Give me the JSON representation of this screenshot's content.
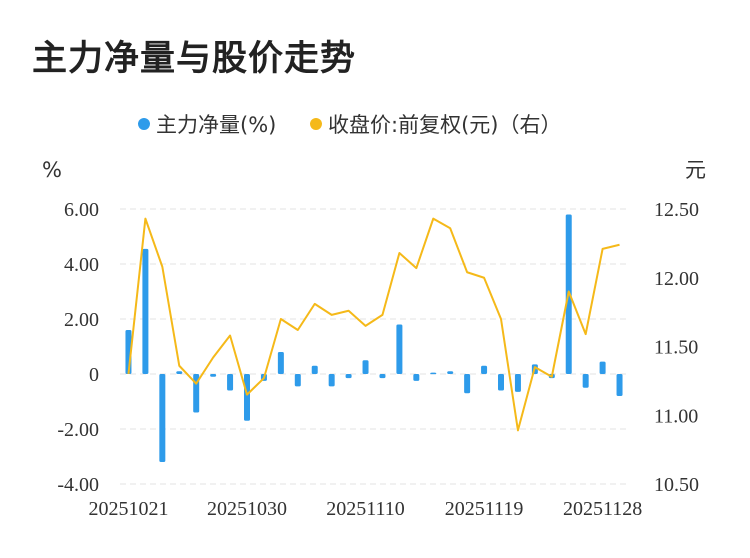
{
  "chart_title": "主力净量与股价走势",
  "chart_data": {
    "type": "bar+line",
    "title": "主力净量与股价走势",
    "left_unit": "%",
    "right_unit": "元",
    "legend": [
      {
        "label": "主力净量(%)",
        "color": "#2E9BEA"
      },
      {
        "label": "收盘价:前复权(元)（右）",
        "color": "#F5B919"
      }
    ],
    "x_tick_labels": [
      "20251021",
      "20251030",
      "20251110",
      "20251119",
      "20251128"
    ],
    "x_tick_indices": [
      0,
      7,
      14,
      21,
      28
    ],
    "left_axis": {
      "ylim": [
        -4,
        6
      ],
      "ticks": [
        "6.00",
        "4.00",
        "2.00",
        "0",
        "-2.00",
        "-4.00"
      ],
      "values": [
        6,
        4,
        2,
        0,
        -2,
        -4
      ]
    },
    "right_axis": {
      "ylim": [
        10.5,
        12.5
      ],
      "ticks": [
        "12.50",
        "12.00",
        "11.50",
        "11.00",
        "10.50"
      ],
      "values": [
        12.5,
        12.0,
        11.5,
        11.0,
        10.5
      ]
    },
    "series": [
      {
        "name": "主力净量(%)",
        "type": "bar",
        "axis": "left",
        "color": "#2E9BEA",
        "values": [
          1.6,
          4.55,
          -3.2,
          0.1,
          -1.4,
          -0.1,
          -0.6,
          -1.7,
          -0.25,
          0.8,
          -0.45,
          0.3,
          -0.45,
          -0.15,
          0.5,
          -0.15,
          1.8,
          -0.25,
          0.05,
          0.1,
          -0.7,
          0.3,
          -0.6,
          -0.65,
          0.35,
          -0.15,
          5.8,
          -0.5,
          0.45,
          -0.8
        ]
      },
      {
        "name": "收盘价:前复权(元)（右）",
        "type": "line",
        "axis": "right",
        "color": "#F5B919",
        "values": [
          11.3,
          12.43,
          12.08,
          11.36,
          11.23,
          11.42,
          11.58,
          11.15,
          11.27,
          11.7,
          11.62,
          11.81,
          11.73,
          11.76,
          11.65,
          11.73,
          12.18,
          12.07,
          12.43,
          12.36,
          12.04,
          12.0,
          11.7,
          10.89,
          11.35,
          11.28,
          11.9,
          11.59,
          12.21,
          12.24
        ]
      }
    ]
  }
}
